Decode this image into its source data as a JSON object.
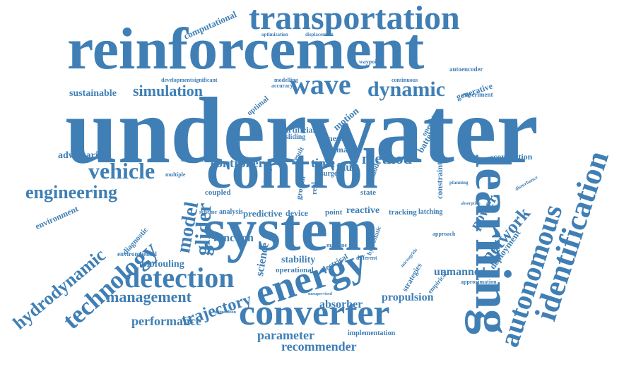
{
  "color": "#3f7fb5",
  "words": [
    "underwater",
    "reinforcement",
    "transportation",
    "control",
    "system",
    "learning",
    "energy",
    "converter",
    "identification",
    "autonomous",
    "detection",
    "technology",
    "hydrodynamic",
    "vehicle",
    "engineering",
    "wave",
    "dynamic",
    "simulation",
    "sustainable",
    "computational",
    "management",
    "performance",
    "trajectory",
    "absorber",
    "parameter",
    "recommender",
    "implementation",
    "propulsion",
    "unmanned",
    "approximation",
    "deployment",
    "network",
    "power",
    "connection",
    "constraint",
    "method",
    "time",
    "fault",
    "controller",
    "model",
    "glider",
    "environment",
    "adversarial",
    "diagnostic",
    "environmental",
    "biofouling",
    "function",
    "science",
    "operational",
    "stability",
    "electrical",
    "predictive",
    "device",
    "analysis",
    "scheme",
    "coupled",
    "multiple",
    "electronic",
    "marine",
    "neural",
    "artificial",
    "motion",
    "surge",
    "point",
    "reactive",
    "tracking",
    "latching",
    "approach",
    "strategies",
    "empirical",
    "generative",
    "experiment",
    "autoencoder",
    "continuous",
    "waypoints",
    "optimization",
    "displacement",
    "modelling",
    "accuracy",
    "development",
    "significant",
    "optimal",
    "sliding",
    "battery",
    "operation",
    "planning",
    "disturbance",
    "machine",
    "hydrostatic",
    "different",
    "microgrids",
    "unsupervised",
    "optimisation",
    "absorption",
    "growth",
    "state",
    "real",
    "data",
    "result",
    "mode"
  ]
}
